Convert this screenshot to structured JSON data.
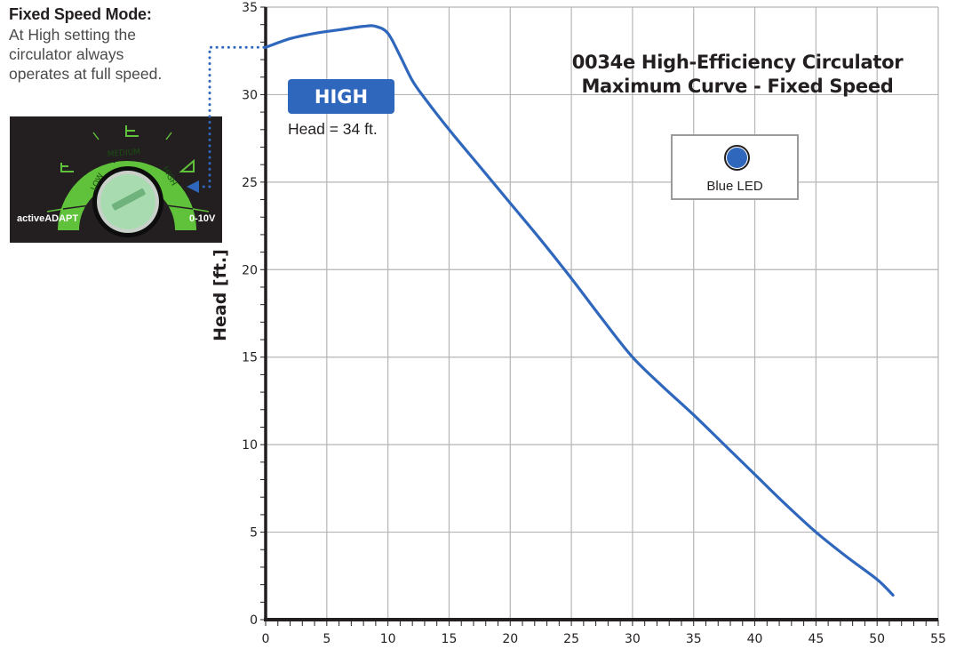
{
  "side_note": {
    "title": "Fixed Speed Mode:",
    "description_lines": [
      "At High setting the",
      "circulator always",
      "operates at full speed."
    ]
  },
  "dial": {
    "segments": [
      "LOW",
      "MEDIUM",
      "HIGH"
    ],
    "left_label": "activeADAPT",
    "right_label": "0-10V",
    "selected": "HIGH",
    "ring_color": "#5fc23a",
    "knob_color": "#a8dcb0",
    "panel_color": "#231f20"
  },
  "callout": {
    "badge": "HIGH",
    "note": "Head = 34 ft.",
    "badge_color": "#2f67bd",
    "connector_color": "#2f67bd"
  },
  "legend": {
    "led_label": "Blue LED",
    "led_color": "#2f67bd"
  },
  "chart_data": {
    "type": "line",
    "title": "0034e High-Efficiency Circulator",
    "subtitle": "Maximum Curve - Fixed Speed",
    "xlabel": "",
    "ylabel": "Head [ft.]",
    "xlim": [
      0,
      55
    ],
    "ylim": [
      0,
      35
    ],
    "x_ticks": [
      0,
      5,
      10,
      15,
      20,
      25,
      30,
      35,
      40,
      45,
      50,
      55
    ],
    "y_ticks": [
      0,
      5,
      10,
      15,
      20,
      25,
      30,
      35
    ],
    "x_minor_step": 1,
    "y_minor_step": 1,
    "grid": true,
    "legend_position": "upper right (inset box)",
    "series": [
      {
        "name": "HIGH (Blue LED)",
        "color": "#2f67bd",
        "x": [
          0,
          2,
          4,
          6,
          8,
          9,
          10,
          11,
          12,
          13,
          15,
          17.5,
          20,
          22.5,
          25,
          27.5,
          30,
          32.5,
          35,
          37.5,
          40,
          42.5,
          45,
          47.5,
          50,
          51.3
        ],
        "y": [
          32.7,
          33.2,
          33.5,
          33.7,
          33.9,
          33.9,
          33.5,
          32.2,
          30.8,
          29.8,
          28.0,
          25.9,
          23.8,
          21.7,
          19.5,
          17.2,
          15.0,
          13.3,
          11.7,
          10.0,
          8.3,
          6.6,
          5.0,
          3.6,
          2.3,
          1.4
        ]
      }
    ]
  }
}
